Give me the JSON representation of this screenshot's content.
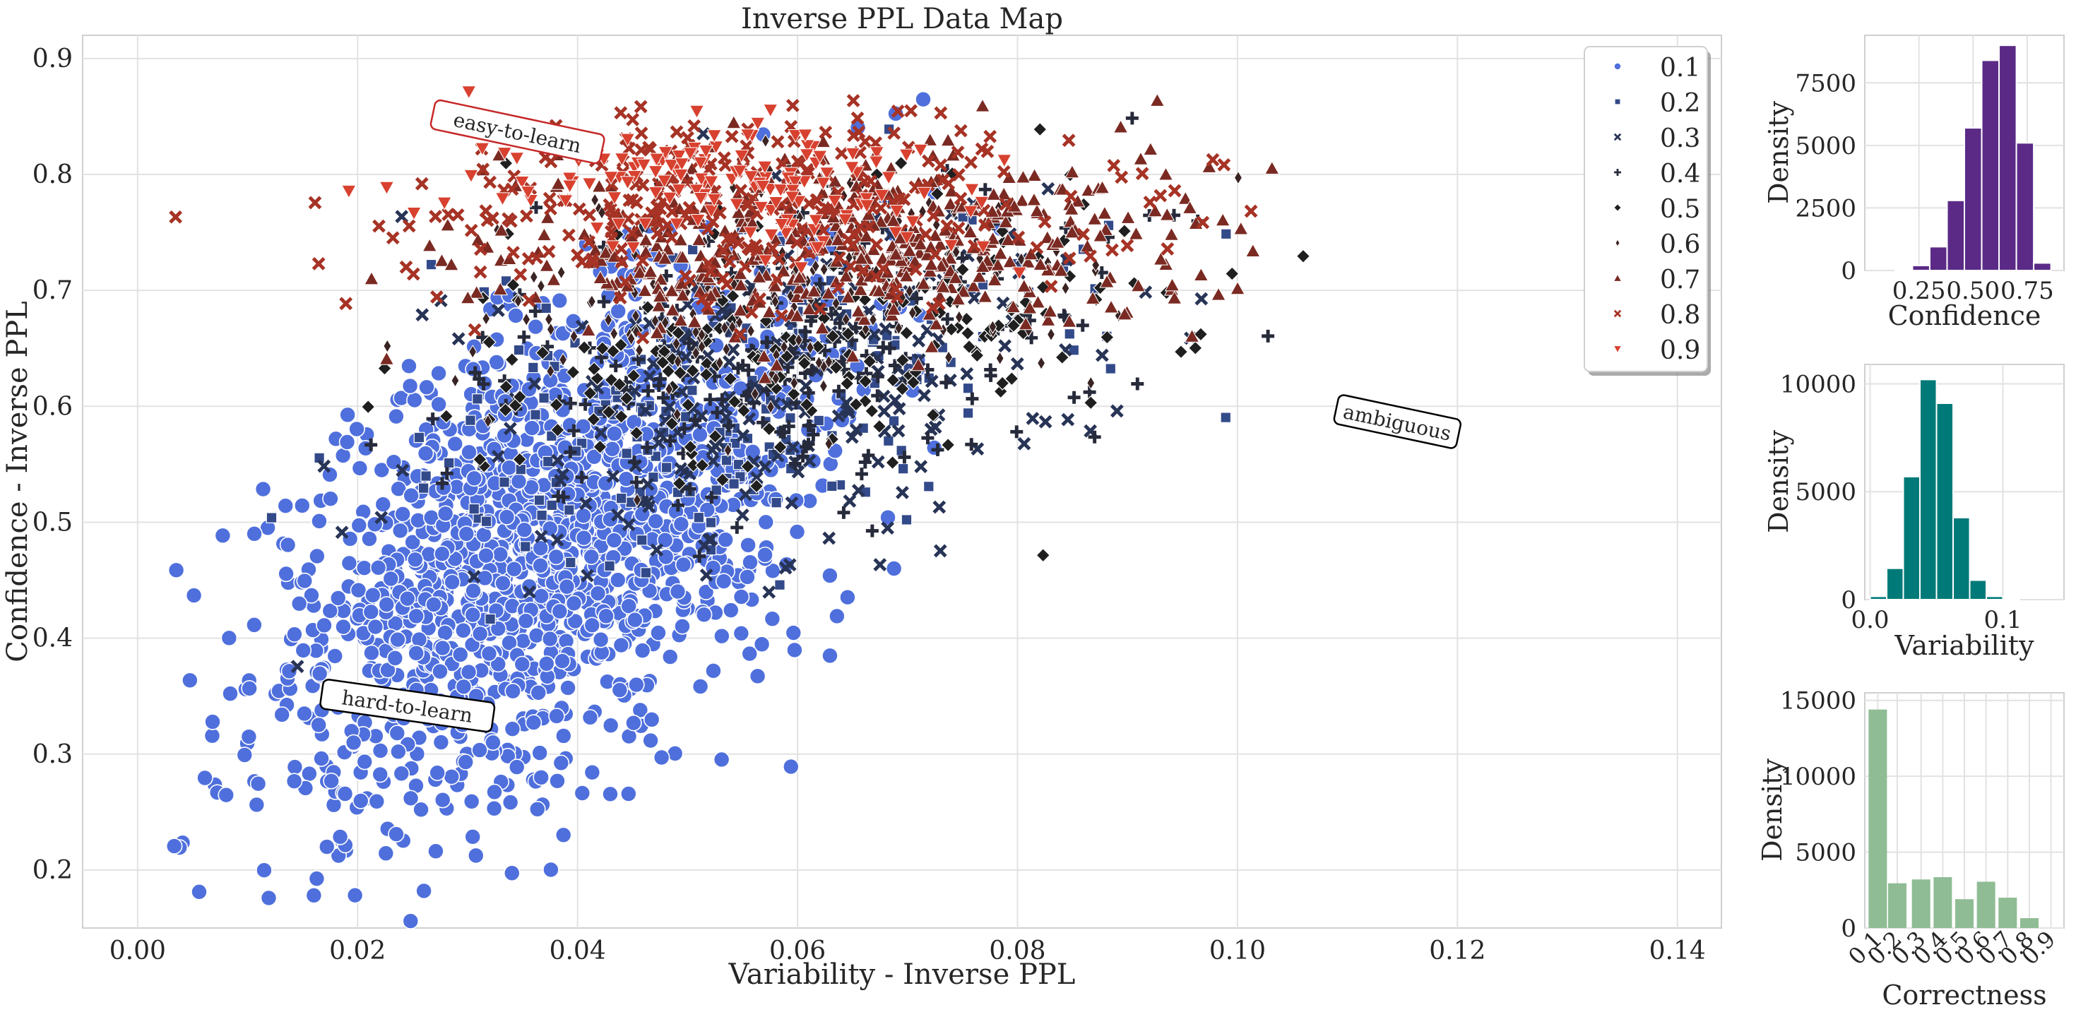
{
  "chart_data": [
    {
      "type": "scatter",
      "title": "Inverse PPL Data Map",
      "xlabel": "Variability - Inverse PPL",
      "ylabel": "Confidence - Inverse PPL",
      "xlim": [
        -0.005,
        0.144
      ],
      "ylim": [
        0.15,
        0.92
      ],
      "xticks": [
        "0.00",
        "0.02",
        "0.04",
        "0.06",
        "0.08",
        "0.10",
        "0.12",
        "0.14"
      ],
      "yticks": [
        "0.2",
        "0.3",
        "0.4",
        "0.5",
        "0.6",
        "0.7",
        "0.8",
        "0.9"
      ],
      "grid": true,
      "legend_position": "top-right",
      "legend": [
        {
          "label": "0.1",
          "color": "#4f6fdc",
          "marker": "circle"
        },
        {
          "label": "0.2",
          "color": "#334a8a",
          "marker": "square"
        },
        {
          "label": "0.3",
          "color": "#283456",
          "marker": "x"
        },
        {
          "label": "0.4",
          "color": "#262a3a",
          "marker": "plus"
        },
        {
          "label": "0.5",
          "color": "#1f1f1f",
          "marker": "diamond"
        },
        {
          "label": "0.6",
          "color": "#3a2323",
          "marker": "diamond-thin"
        },
        {
          "label": "0.7",
          "color": "#7a2a22",
          "marker": "triangle-up"
        },
        {
          "label": "0.8",
          "color": "#a63325",
          "marker": "x"
        },
        {
          "label": "0.9",
          "color": "#d8412f",
          "marker": "triangle-down"
        }
      ],
      "annotations": [
        {
          "text": "easy-to-learn",
          "x": 0.0345,
          "y": 0.835,
          "border_color": "#c62828",
          "rotation": 12
        },
        {
          "text": "ambiguous",
          "x": 0.1145,
          "y": 0.585,
          "border_color": "#000000",
          "rotation": 12
        },
        {
          "text": "hard-to-learn",
          "x": 0.0245,
          "y": 0.34,
          "border_color": "#000000",
          "rotation": 8
        }
      ],
      "clusters": [
        {
          "series": "0.1",
          "count": 1500,
          "x_mean": 0.037,
          "x_sd": 0.013,
          "y_mean": 0.48,
          "y_sd": 0.1,
          "slope": 4.5
        },
        {
          "series": "0.2",
          "count": 200,
          "x_mean": 0.055,
          "x_sd": 0.015,
          "y_mean": 0.61,
          "y_sd": 0.07,
          "slope": 2.5
        },
        {
          "series": "0.3",
          "count": 220,
          "x_mean": 0.058,
          "x_sd": 0.015,
          "y_mean": 0.62,
          "y_sd": 0.07,
          "slope": 2.0
        },
        {
          "series": "0.4",
          "count": 220,
          "x_mean": 0.06,
          "x_sd": 0.015,
          "y_mean": 0.64,
          "y_sd": 0.06,
          "slope": 1.8
        },
        {
          "series": "0.5",
          "count": 200,
          "x_mean": 0.062,
          "x_sd": 0.016,
          "y_mean": 0.66,
          "y_sd": 0.06,
          "slope": 1.2
        },
        {
          "series": "0.6",
          "count": 180,
          "x_mean": 0.06,
          "x_sd": 0.015,
          "y_mean": 0.7,
          "y_sd": 0.05,
          "slope": 0.8
        },
        {
          "series": "0.7",
          "count": 450,
          "x_mean": 0.065,
          "x_sd": 0.017,
          "y_mean": 0.74,
          "y_sd": 0.04,
          "slope": 0.2
        },
        {
          "series": "0.8",
          "count": 300,
          "x_mean": 0.055,
          "x_sd": 0.016,
          "y_mean": 0.77,
          "y_sd": 0.04,
          "slope": 0.0
        },
        {
          "series": "0.9",
          "count": 150,
          "x_mean": 0.055,
          "x_sd": 0.013,
          "y_mean": 0.79,
          "y_sd": 0.03,
          "slope": -0.3
        }
      ]
    },
    {
      "type": "bar",
      "title": "",
      "xlabel": "Confidence",
      "ylabel": "Density",
      "color": "#5b2a86",
      "xlim": [
        0.0,
        0.92
      ],
      "ylim": [
        0,
        9400
      ],
      "xticks": [
        "0.25",
        "0.50",
        "0.75"
      ],
      "yticks": [
        "0",
        "2500",
        "5000",
        "7500"
      ],
      "bins": [
        {
          "x0": 0.14,
          "x1": 0.22,
          "value": 50
        },
        {
          "x0": 0.22,
          "x1": 0.3,
          "value": 200
        },
        {
          "x0": 0.3,
          "x1": 0.38,
          "value": 950
        },
        {
          "x0": 0.38,
          "x1": 0.46,
          "value": 2800
        },
        {
          "x0": 0.46,
          "x1": 0.54,
          "value": 5700
        },
        {
          "x0": 0.54,
          "x1": 0.62,
          "value": 8400
        },
        {
          "x0": 0.62,
          "x1": 0.7,
          "value": 9000
        },
        {
          "x0": 0.7,
          "x1": 0.78,
          "value": 5100
        },
        {
          "x0": 0.78,
          "x1": 0.86,
          "value": 300
        }
      ]
    },
    {
      "type": "bar",
      "title": "",
      "xlabel": "Variability",
      "ylabel": "Density",
      "color": "#007a78",
      "xlim": [
        -0.004,
        0.146
      ],
      "ylim": [
        0,
        10900
      ],
      "xticks": [
        "0.0",
        "0.1"
      ],
      "yticks": [
        "0",
        "5000",
        "10000"
      ],
      "bins": [
        {
          "x0": 0.0,
          "x1": 0.0125,
          "value": 150
        },
        {
          "x0": 0.0125,
          "x1": 0.025,
          "value": 1450
        },
        {
          "x0": 0.025,
          "x1": 0.0375,
          "value": 5700
        },
        {
          "x0": 0.0375,
          "x1": 0.05,
          "value": 10200
        },
        {
          "x0": 0.05,
          "x1": 0.0625,
          "value": 9100
        },
        {
          "x0": 0.0625,
          "x1": 0.075,
          "value": 3800
        },
        {
          "x0": 0.075,
          "x1": 0.0875,
          "value": 900
        },
        {
          "x0": 0.0875,
          "x1": 0.1,
          "value": 150
        },
        {
          "x0": 0.1,
          "x1": 0.1125,
          "value": 50
        }
      ]
    },
    {
      "type": "bar",
      "title": "",
      "xlabel": "Correctness",
      "ylabel": "Density",
      "color": "#8fbc94",
      "ylim": [
        0,
        15500
      ],
      "yticks": [
        "0",
        "5000",
        "10000",
        "15000"
      ],
      "categories": [
        "0.1",
        "0.2",
        "0.3",
        "0.4",
        "0.5",
        "0.6",
        "0.7",
        "0.8",
        "0.9"
      ],
      "values": [
        14400,
        2950,
        3200,
        3350,
        1900,
        3050,
        2000,
        650,
        0
      ],
      "positions": [
        0,
        0.9,
        2,
        3,
        4,
        5,
        6,
        7,
        8
      ]
    }
  ]
}
